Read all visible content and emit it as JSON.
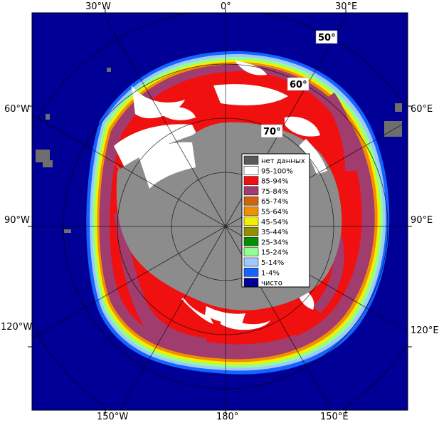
{
  "map": {
    "longitude_labels": {
      "top_left": "30°W",
      "top_center": "0°",
      "top_right": "30°E",
      "left_upper": "60°W",
      "left_middle": "90°W",
      "left_lower": "120°W",
      "right_upper": "60°E",
      "right_middle": "90°E",
      "right_lower": "120°E",
      "bottom_left": "150°W",
      "bottom_center": "180°",
      "bottom_right": "150°E"
    },
    "latitude_labels": {
      "lat50": "50°",
      "lat60": "60°",
      "lat70": "70°"
    }
  },
  "legend": {
    "items": [
      {
        "label": "нет данных",
        "color": "#5a5a5a"
      },
      {
        "label": "95-100%",
        "color": "#ffffff"
      },
      {
        "label": "85-94%",
        "color": "#f01010"
      },
      {
        "label": "75-84%",
        "color": "#a03c6e"
      },
      {
        "label": "65-74%",
        "color": "#d0640c"
      },
      {
        "label": "55-64%",
        "color": "#f09000"
      },
      {
        "label": "45-54%",
        "color": "#f0f000"
      },
      {
        "label": "35-44%",
        "color": "#909000"
      },
      {
        "label": "25-34%",
        "color": "#009000"
      },
      {
        "label": "15-24%",
        "color": "#90ff90"
      },
      {
        "label": "5-14%",
        "color": "#a0c8ff"
      },
      {
        "label": "1-4%",
        "color": "#1464ff"
      },
      {
        "label": "чисто",
        "color": "#000096"
      }
    ]
  },
  "colors": {
    "open_water": "#000096",
    "land": "#8c8c8c",
    "no_data": "#5a5a5a",
    "ice_95_100": "#ffffff",
    "ice_85_94": "#f01010",
    "ice_75_84": "#a03c6e",
    "graticule": "#a0a0a0"
  }
}
